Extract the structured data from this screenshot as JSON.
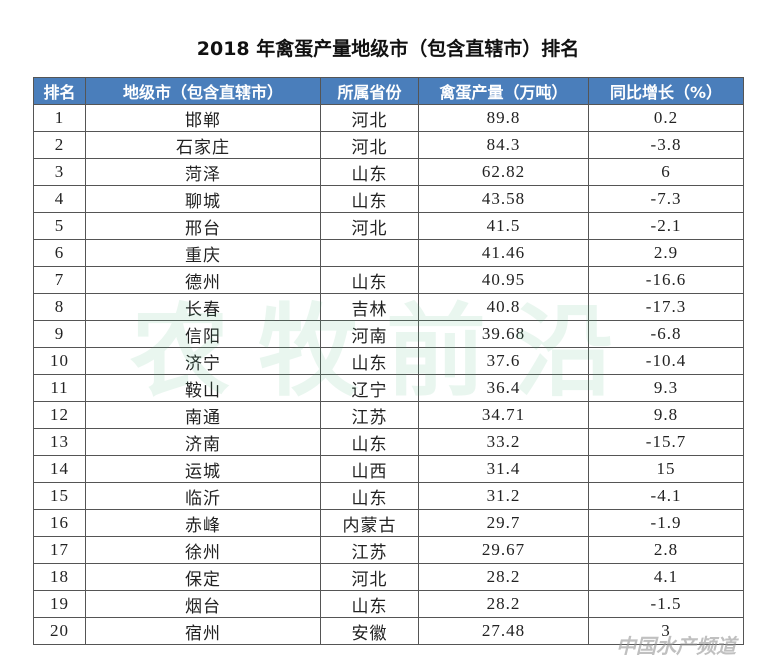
{
  "header": {
    "title": "2018 年禽蛋产量地级市（包含直辖市）排名"
  },
  "watermark": {
    "main": "农牧前沿",
    "logo": "中国水产频道"
  },
  "table": {
    "columns": [
      "排名",
      "地级市（包含直辖市）",
      "所属省份",
      "禽蛋产量（万吨）",
      "同比增长（%）"
    ],
    "rows": [
      [
        1,
        "邯郸",
        "河北",
        89.8,
        0.2
      ],
      [
        2,
        "石家庄",
        "河北",
        84.3,
        -3.8
      ],
      [
        3,
        "菏泽",
        "山东",
        62.82,
        6
      ],
      [
        4,
        "聊城",
        "山东",
        43.58,
        -7.3
      ],
      [
        5,
        "邢台",
        "河北",
        41.5,
        -2.1
      ],
      [
        6,
        "重庆",
        null,
        41.46,
        2.9
      ],
      [
        7,
        "德州",
        "山东",
        40.95,
        -16.6
      ],
      [
        8,
        "长春",
        "吉林",
        40.8,
        -17.3
      ],
      [
        9,
        "信阳",
        "河南",
        39.68,
        -6.8
      ],
      [
        10,
        "济宁",
        "山东",
        37.6,
        -10.4
      ],
      [
        11,
        "鞍山",
        "辽宁",
        36.4,
        9.3
      ],
      [
        12,
        "南通",
        "江苏",
        34.71,
        9.8
      ],
      [
        13,
        "济南",
        "山东",
        33.2,
        -15.7
      ],
      [
        14,
        "运城",
        "山西",
        31.4,
        15
      ],
      [
        15,
        "临沂",
        "山东",
        31.2,
        -4.1
      ],
      [
        16,
        "赤峰",
        "内蒙古",
        29.7,
        -1.9
      ],
      [
        17,
        "徐州",
        "江苏",
        29.67,
        2.8
      ],
      [
        18,
        "保定",
        "河北",
        28.2,
        4.1
      ],
      [
        19,
        "烟台",
        "山东",
        28.2,
        -1.5
      ],
      [
        20,
        "宿州",
        "安徽",
        27.48,
        3
      ]
    ]
  }
}
